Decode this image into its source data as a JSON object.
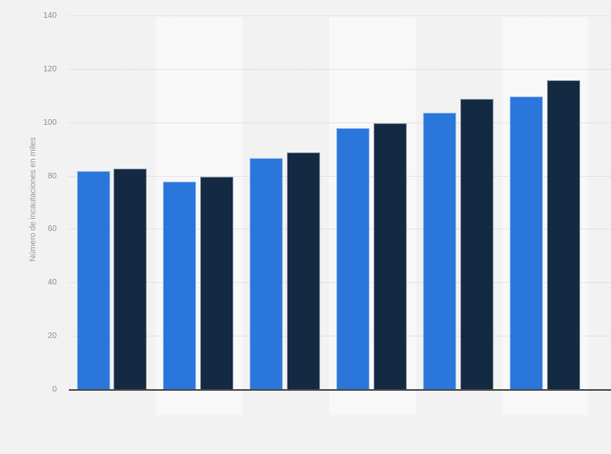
{
  "chart_style": {
    "background": "#f2f2f2",
    "band_light": "#f8f8f8",
    "axis_line_color": "#4a4a4a",
    "gridline_color": "#d2d2d2",
    "tick_label_color": "#8e8e8e",
    "ytitle_color": "#979797"
  },
  "chart_data": {
    "type": "bar",
    "title": "",
    "xlabel": "",
    "ylabel": "Número de incautaciones en miles",
    "ylim": [
      0,
      140
    ],
    "yticks": [
      0,
      20,
      40,
      60,
      80,
      100,
      120,
      140
    ],
    "grid": "horizontal dotted gridlines",
    "plot_background": "alternating vertical column bands",
    "x_tick_labels_visible": false,
    "legend_visible": false,
    "categories": [
      "",
      "",
      "",
      "",
      "",
      ""
    ],
    "series": [
      {
        "name": "blue-series",
        "color": "#2b76da",
        "values": [
          82,
          78,
          87,
          98,
          104,
          110
        ]
      },
      {
        "name": "dark-navy-series",
        "color": "#142a43",
        "values": [
          83,
          80,
          89,
          100,
          109,
          116
        ]
      }
    ]
  }
}
